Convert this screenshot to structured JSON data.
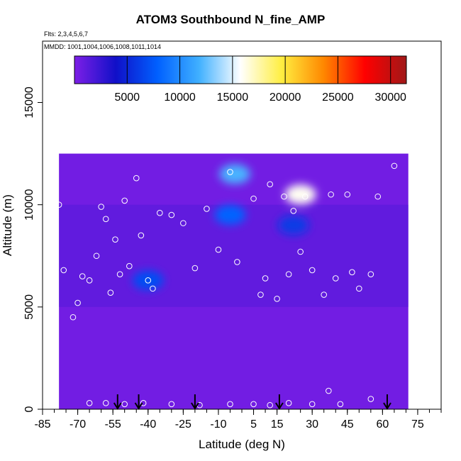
{
  "chart_data": {
    "type": "heatmap",
    "title": "ATOM3 Southbound N_fine_AMP",
    "annotations": [
      "Flts: 2,3,4,5,6,7",
      "MMDD: 1001,1004,1006,1008,1011,1014"
    ],
    "xlabel": "Latitude (deg N)",
    "ylabel": "Altitude (m)",
    "xlim": [
      -85,
      85
    ],
    "ylim": [
      0,
      18000
    ],
    "x_ticks": [
      -85,
      -70,
      -55,
      -40,
      -25,
      -10,
      5,
      15,
      30,
      45,
      60,
      75
    ],
    "y_ticks": [
      0,
      5000,
      10000,
      15000
    ],
    "colorbar": {
      "range": [
        0,
        31500
      ],
      "ticks": [
        5000,
        10000,
        15000,
        20000,
        25000,
        30000
      ],
      "colors": [
        "#7d1fe6",
        "#1010c8",
        "#0060ff",
        "#40b0ff",
        "#ffffff",
        "#ffee40",
        "#ff8800",
        "#ff0000",
        "#a01818"
      ]
    },
    "curtain_extent": {
      "lat_range": [
        -78,
        71
      ],
      "alt_range": [
        0,
        12500
      ]
    },
    "hotspots": [
      {
        "lat": -3,
        "alt": 11500,
        "value": 12000
      },
      {
        "lat": -5,
        "alt": 9500,
        "value": 8000
      },
      {
        "lat": 25,
        "alt": 10500,
        "value": 16000
      },
      {
        "lat": 22,
        "alt": 9000,
        "value": 6000
      },
      {
        "lat": -40,
        "alt": 6300,
        "value": 7000
      }
    ],
    "sample_points": [
      [
        -76,
        6800
      ],
      [
        -70,
        5200
      ],
      [
        -68,
        6500
      ],
      [
        -65,
        6300
      ],
      [
        -62,
        7500
      ],
      [
        -60,
        9900
      ],
      [
        -58,
        9300
      ],
      [
        -56,
        5700
      ],
      [
        -54,
        8300
      ],
      [
        -52,
        6600
      ],
      [
        -50,
        10200
      ],
      [
        -48,
        7000
      ],
      [
        -45,
        11300
      ],
      [
        -43,
        8500
      ],
      [
        -40,
        6300
      ],
      [
        -38,
        5900
      ],
      [
        -35,
        9600
      ],
      [
        -30,
        9500
      ],
      [
        -25,
        9100
      ],
      [
        -20,
        6900
      ],
      [
        -15,
        9800
      ],
      [
        -10,
        7800
      ],
      [
        -5,
        11600
      ],
      [
        -2,
        7200
      ],
      [
        5,
        10300
      ],
      [
        8,
        5600
      ],
      [
        10,
        6400
      ],
      [
        12,
        11000
      ],
      [
        15,
        5400
      ],
      [
        18,
        10400
      ],
      [
        20,
        6600
      ],
      [
        22,
        9700
      ],
      [
        25,
        7700
      ],
      [
        27,
        10400
      ],
      [
        30,
        6800
      ],
      [
        35,
        5600
      ],
      [
        38,
        10500
      ],
      [
        40,
        6400
      ],
      [
        45,
        10500
      ],
      [
        47,
        6700
      ],
      [
        50,
        5900
      ],
      [
        55,
        6600
      ],
      [
        58,
        10400
      ],
      [
        65,
        11900
      ],
      [
        -65,
        300
      ],
      [
        -58,
        300
      ],
      [
        -50,
        250
      ],
      [
        -42,
        300
      ],
      [
        -30,
        250
      ],
      [
        -18,
        200
      ],
      [
        -5,
        250
      ],
      [
        5,
        250
      ],
      [
        12,
        200
      ],
      [
        20,
        300
      ],
      [
        30,
        250
      ],
      [
        37,
        900
      ],
      [
        42,
        250
      ],
      [
        55,
        500
      ],
      [
        -78,
        10000
      ],
      [
        -72,
        4500
      ]
    ],
    "flight_markers_lat": [
      -53,
      -44,
      -20,
      16,
      62
    ]
  }
}
